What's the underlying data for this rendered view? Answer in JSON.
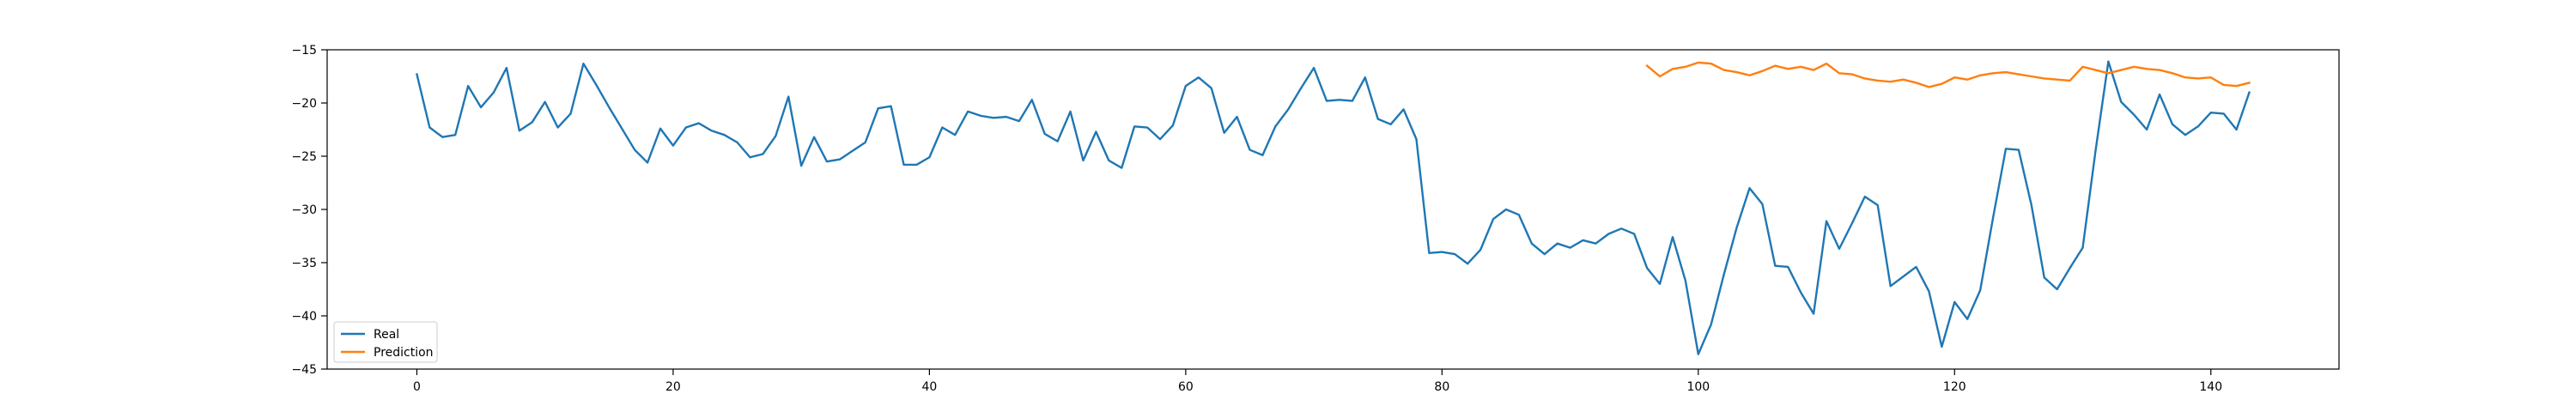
{
  "chart_data": {
    "type": "line",
    "title": "",
    "xlabel": "",
    "ylabel": "",
    "xlim": [
      -7,
      150
    ],
    "ylim": [
      -45,
      -15
    ],
    "x_ticks": [
      0,
      20,
      40,
      60,
      80,
      100,
      120,
      140
    ],
    "y_ticks": [
      -45,
      -40,
      -35,
      -30,
      -25,
      -20,
      -15
    ],
    "grid": false,
    "legend_position": "lower-left",
    "series": [
      {
        "name": "Real",
        "color": "#1f77b4",
        "x_start": 0,
        "values": [
          -17.3,
          -22.3,
          -23.2,
          -23.0,
          -18.4,
          -20.4,
          -19.0,
          -16.7,
          -22.6,
          -21.8,
          -19.9,
          -22.3,
          -21.0,
          -16.3,
          -18.3,
          -20.4,
          -22.4,
          -24.4,
          -25.6,
          -22.4,
          -24.0,
          -22.3,
          -21.9,
          -22.6,
          -23.0,
          -23.7,
          -25.1,
          -24.8,
          -23.1,
          -19.4,
          -25.9,
          -23.2,
          -25.5,
          -25.3,
          -24.5,
          -23.7,
          -20.5,
          -20.3,
          -25.8,
          -25.8,
          -25.1,
          -22.3,
          -23.0,
          -20.8,
          -21.2,
          -21.4,
          -21.3,
          -21.7,
          -19.7,
          -22.9,
          -23.6,
          -20.8,
          -25.4,
          -22.7,
          -25.4,
          -26.1,
          -22.2,
          -22.3,
          -23.4,
          -22.1,
          -18.4,
          -17.6,
          -18.6,
          -22.8,
          -21.3,
          -24.4,
          -24.9,
          -22.2,
          -20.6,
          -18.6,
          -16.7,
          -19.8,
          -19.7,
          -19.8,
          -17.6,
          -21.5,
          -22.0,
          -20.6,
          -23.4,
          -34.1,
          -34.0,
          -34.2,
          -35.1,
          -33.8,
          -30.9,
          -30.0,
          -30.5,
          -33.2,
          -34.2,
          -33.2,
          -33.6,
          -32.9,
          -33.2,
          -32.3,
          -31.8,
          -32.3,
          -35.5,
          -37.0,
          -32.6,
          -36.7,
          -43.6,
          -40.8,
          -36.1,
          -31.7,
          -28.0,
          -29.5,
          -35.3,
          -35.4,
          -37.8,
          -39.8,
          -31.1,
          -33.7,
          -31.3,
          -28.8,
          -29.6,
          -37.2,
          -36.3,
          -35.4,
          -37.7,
          -42.9,
          -38.7,
          -40.3,
          -37.6,
          -30.8,
          -24.3,
          -24.4,
          -29.6,
          -36.4,
          -37.5,
          -35.5,
          -33.6,
          -24.5,
          -16.1,
          -19.9,
          -21.1,
          -22.5,
          -19.2,
          -22.0,
          -23.0,
          -22.2,
          -20.9,
          -21.0,
          -22.5,
          -19.0
        ]
      },
      {
        "name": "Prediction",
        "color": "#ff7f0e",
        "x_start": 96,
        "values": [
          -16.5,
          -17.5,
          -16.8,
          -16.6,
          -16.2,
          -16.3,
          -16.9,
          -17.1,
          -17.4,
          -17.0,
          -16.5,
          -16.8,
          -16.6,
          -16.9,
          -16.3,
          -17.2,
          -17.3,
          -17.7,
          -17.9,
          -18.0,
          -17.8,
          -18.1,
          -18.5,
          -18.2,
          -17.6,
          -17.8,
          -17.4,
          -17.2,
          -17.1,
          -17.3,
          -17.5,
          -17.7,
          -17.8,
          -17.9,
          -16.6,
          -16.9,
          -17.2,
          -16.9,
          -16.6,
          -16.8,
          -16.9,
          -17.2,
          -17.6,
          -17.7,
          -17.6,
          -18.3,
          -18.4,
          -18.1
        ]
      }
    ]
  }
}
